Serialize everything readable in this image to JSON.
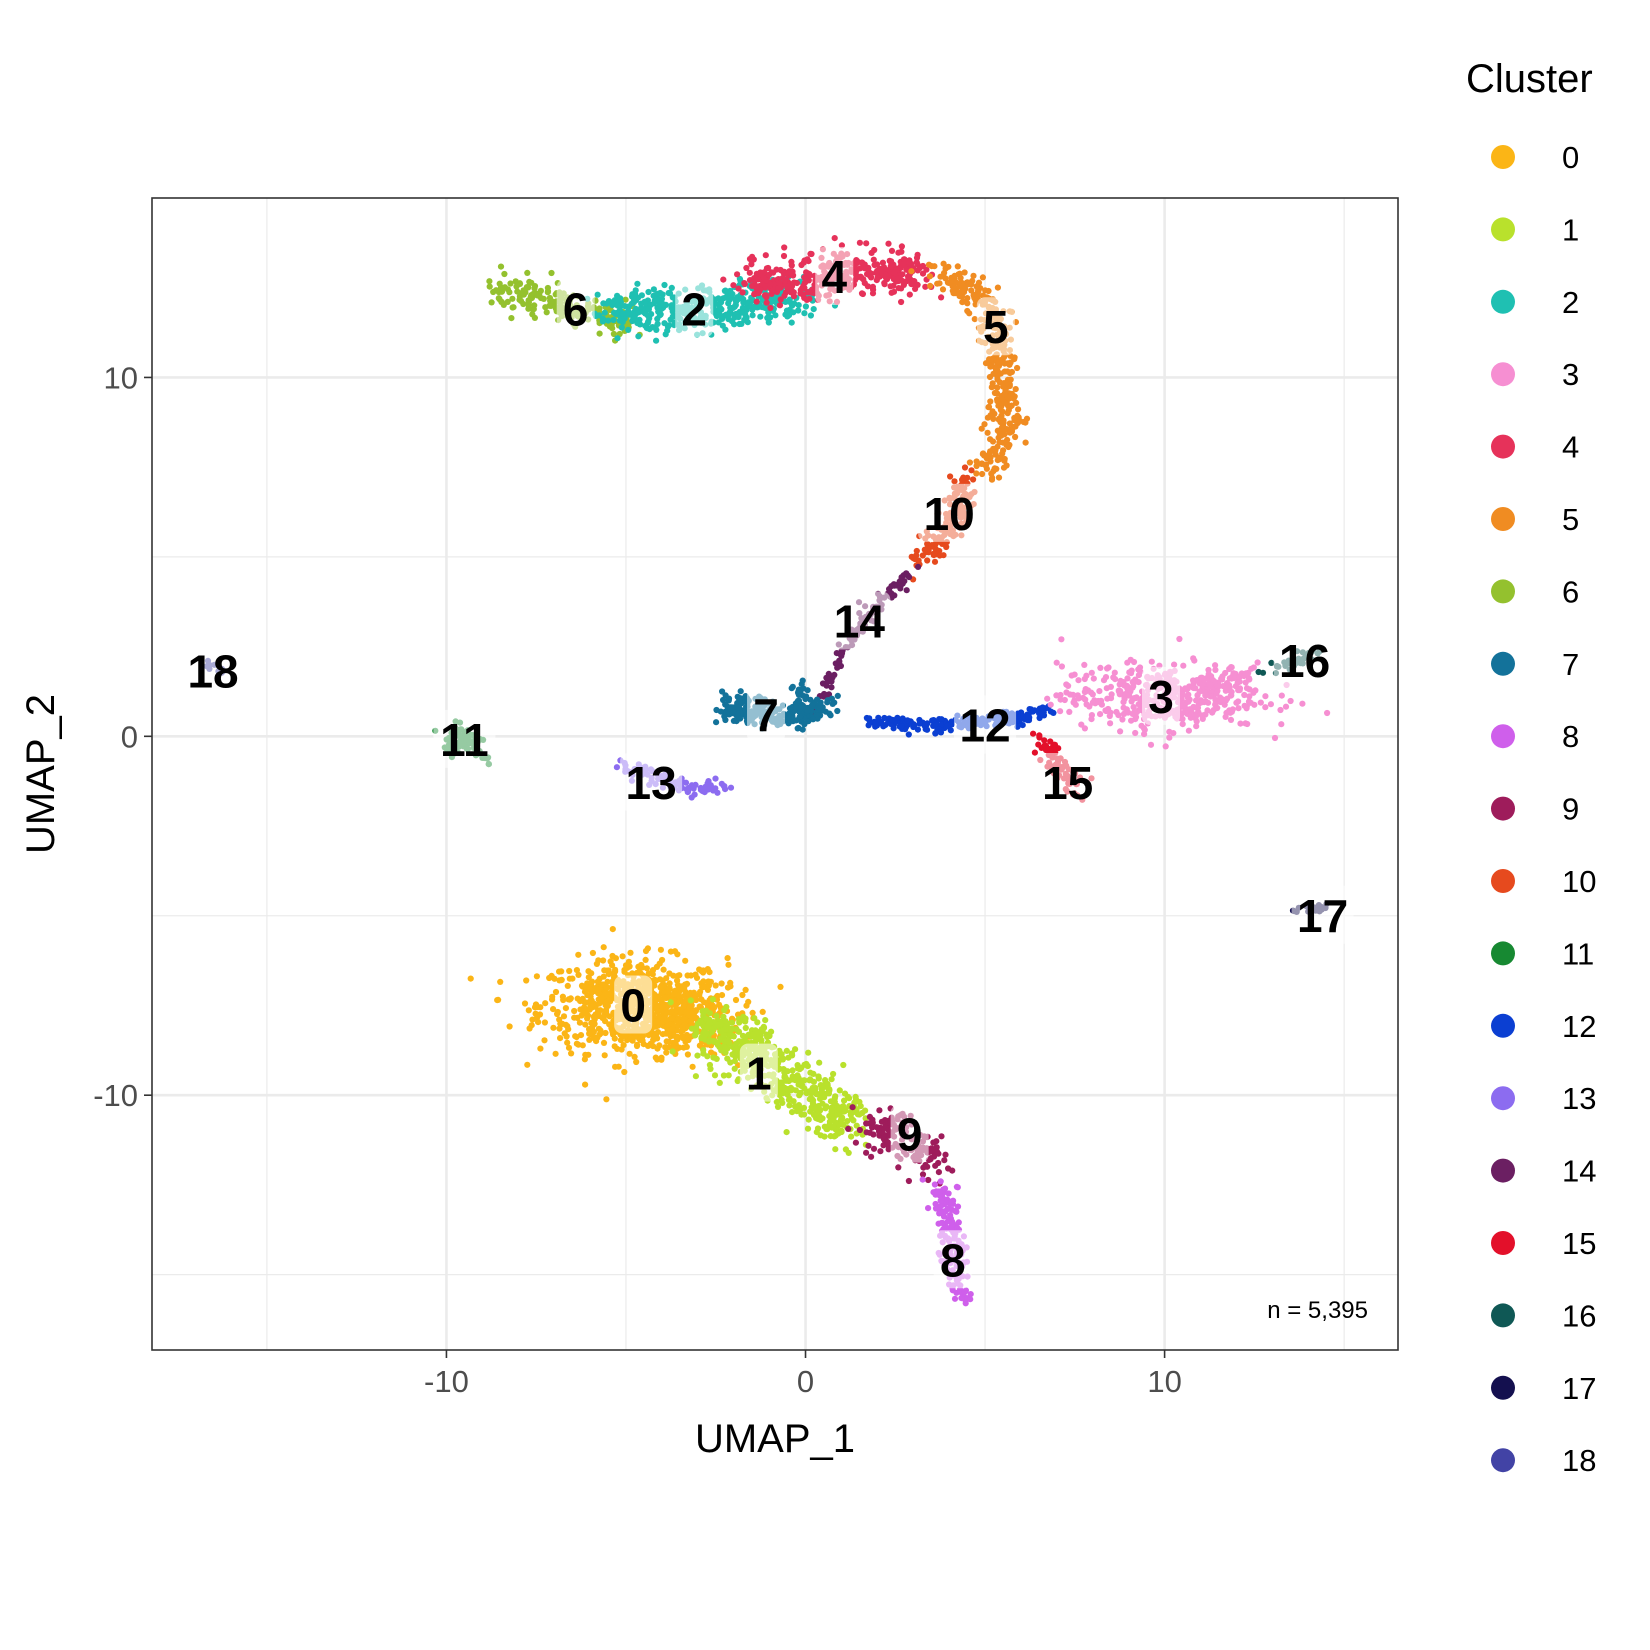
{
  "chart_data": {
    "type": "scatter",
    "title": "",
    "xlabel": "UMAP_1",
    "ylabel": "UMAP_2",
    "xlim": [
      -18.2,
      16.5
    ],
    "ylim": [
      -17.1,
      15
    ],
    "xticks": [
      -10,
      0,
      10
    ],
    "yticks": [
      -10,
      0,
      10
    ],
    "tick_labels_x": [
      "-10",
      "0",
      "10"
    ],
    "tick_labels_y": [
      "-10",
      "0",
      "10"
    ],
    "grid": true,
    "legend_title": "Cluster",
    "legend_position": "right",
    "annotation": "n = 5,395",
    "clusters": [
      {
        "name": "0",
        "color": "#FBB516",
        "label_pos": [
          -4.8,
          -7.5
        ]
      },
      {
        "name": "1",
        "color": "#B9E12C",
        "label_pos": [
          -1.3,
          -9.4
        ]
      },
      {
        "name": "2",
        "color": "#1FC0B2",
        "label_pos": [
          -3.1,
          11.9
        ]
      },
      {
        "name": "3",
        "color": "#F68FD2",
        "label_pos": [
          9.9,
          1.1
        ]
      },
      {
        "name": "4",
        "color": "#E6325A",
        "label_pos": [
          0.8,
          12.8
        ]
      },
      {
        "name": "5",
        "color": "#F08C22",
        "label_pos": [
          5.3,
          11.4
        ]
      },
      {
        "name": "6",
        "color": "#94C12E",
        "label_pos": [
          -6.4,
          11.9
        ]
      },
      {
        "name": "7",
        "color": "#13729A",
        "label_pos": [
          -1.1,
          0.6
        ]
      },
      {
        "name": "8",
        "color": "#CF5FEB",
        "label_pos": [
          4.1,
          -14.6
        ]
      },
      {
        "name": "9",
        "color": "#9E1C5B",
        "label_pos": [
          2.9,
          -11.1
        ]
      },
      {
        "name": "10",
        "color": "#E64A1E",
        "label_pos": [
          4.0,
          6.2
        ]
      },
      {
        "name": "11",
        "color": "#178932",
        "label_pos": [
          -9.5,
          -0.1
        ]
      },
      {
        "name": "12",
        "color": "#0B3FD2",
        "label_pos": [
          5.0,
          0.3
        ]
      },
      {
        "name": "13",
        "color": "#8C6CF0",
        "label_pos": [
          -4.3,
          -1.3
        ]
      },
      {
        "name": "14",
        "color": "#6B1F62",
        "label_pos": [
          1.5,
          3.2
        ]
      },
      {
        "name": "15",
        "color": "#E3102A",
        "label_pos": [
          7.3,
          -1.3
        ]
      },
      {
        "name": "16",
        "color": "#0F5855",
        "label_pos": [
          13.9,
          2.1
        ]
      },
      {
        "name": "17",
        "color": "#14104F",
        "label_pos": [
          14.4,
          -5.0
        ]
      },
      {
        "name": "18",
        "color": "#4243A5",
        "label_pos": [
          -16.5,
          1.8
        ]
      }
    ]
  }
}
